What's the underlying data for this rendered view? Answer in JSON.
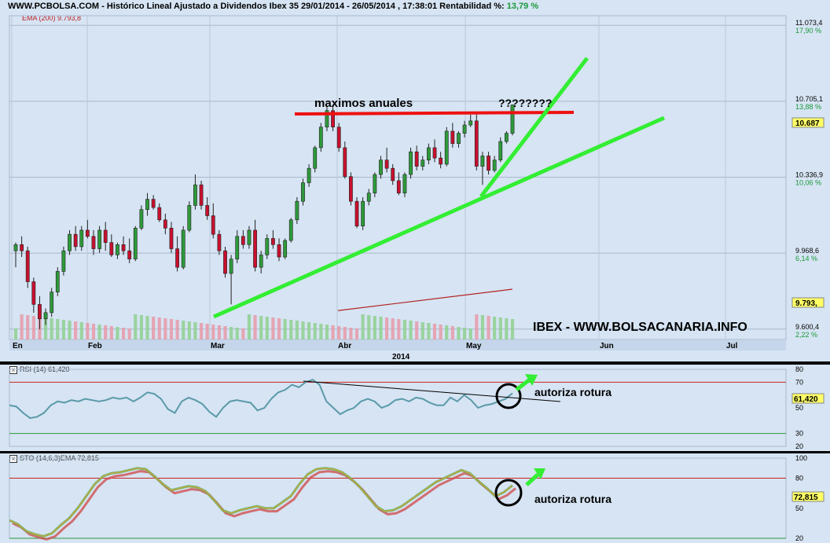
{
  "header": {
    "title_main": "WWW.PCBOLSA.COM - Histórico Lineal  Ajustado a Dividendos Ibex 35 29/01/2014 - 26/05/2014 , 17:38:01 Rentabilidad %:",
    "title_pct": "13,79 %",
    "ema_label": "EMA (200) 9.793,8"
  },
  "price_axis": [
    {
      "price": 11073.4,
      "label": "11.073,4",
      "pct": "17,90 %"
    },
    {
      "price": 10705.1,
      "label": "10.705,1",
      "pct": "13,88 %"
    },
    {
      "price": 10336.9,
      "label": "10.336,9",
      "pct": "10,06 %"
    },
    {
      "price": 9968.6,
      "label": "9.968,6",
      "pct": "6,14 %"
    },
    {
      "price": 9600.4,
      "label": "9.600,4",
      "pct": "2,22 %"
    }
  ],
  "badges": {
    "last_price": "10.687",
    "ema_value": "9.793,"
  },
  "months": [
    "En",
    "Feb",
    "Mar",
    "Abr",
    "May",
    "Jun",
    "Jul"
  ],
  "year_label": "2014",
  "annotations": {
    "maximos": "maximos anuales",
    "question": "????????",
    "watermark": "IBEX - WWW.BOLSACANARIA.INFO",
    "rsi_note": "autoriza rotura",
    "sto_note": "autoriza rotura"
  },
  "rsi": {
    "header": "RSI (14) 61,420",
    "axis": [
      "80",
      "70",
      "50",
      "30",
      "20"
    ],
    "badge": "61,420"
  },
  "sto": {
    "header": "STO (14,6,3)EMA 72,815",
    "axis": [
      "100",
      "80",
      "50",
      "20"
    ],
    "badge": "72,815"
  },
  "colors": {
    "up": "#2e9a3a",
    "down": "#c8102e",
    "trend": "#33ee33",
    "resistance": "#ee1111",
    "panel_bg": "#d6e4f3"
  },
  "chart_data": [
    {
      "type": "candlestick",
      "title": "Ibex 35",
      "ylim": [
        9550,
        11120
      ],
      "x_months": [
        "En",
        "Feb",
        "Mar",
        "Abr",
        "May",
        "Jun",
        "Jul"
      ],
      "series": [
        {
          "name": "Ibex 35",
          "ohlc": [
            [
              9980,
              10020,
              9900,
              10010
            ],
            [
              10010,
              10050,
              9950,
              9980
            ],
            [
              9980,
              10000,
              9800,
              9830
            ],
            [
              9830,
              9850,
              9680,
              9720
            ],
            [
              9720,
              9760,
              9600,
              9650
            ],
            [
              9650,
              9700,
              9620,
              9680
            ],
            [
              9680,
              9800,
              9660,
              9780
            ],
            [
              9780,
              9900,
              9760,
              9880
            ],
            [
              9880,
              10000,
              9860,
              9980
            ],
            [
              9980,
              10080,
              9960,
              10060
            ],
            [
              10060,
              10100,
              9980,
              10000
            ],
            [
              10000,
              10100,
              9980,
              10080
            ],
            [
              10080,
              10130,
              10040,
              10050
            ],
            [
              10050,
              10080,
              9960,
              9990
            ],
            [
              9990,
              10100,
              9970,
              10080
            ],
            [
              10080,
              10120,
              9980,
              10020
            ],
            [
              10020,
              10060,
              9950,
              9960
            ],
            [
              9960,
              10020,
              9940,
              10010
            ],
            [
              10010,
              10050,
              9960,
              9980
            ],
            [
              9980,
              10040,
              9920,
              9940
            ],
            [
              9940,
              10100,
              9930,
              10090
            ],
            [
              10090,
              10200,
              10080,
              10180
            ],
            [
              10180,
              10260,
              10150,
              10230
            ],
            [
              10230,
              10250,
              10180,
              10190
            ],
            [
              10190,
              10210,
              10120,
              10130
            ],
            [
              10130,
              10160,
              10060,
              10090
            ],
            [
              10090,
              10120,
              9970,
              9990
            ],
            [
              9990,
              10050,
              9880,
              9900
            ],
            [
              9900,
              10100,
              9890,
              10080
            ],
            [
              10080,
              10220,
              10070,
              10200
            ],
            [
              10200,
              10350,
              10180,
              10300
            ],
            [
              10300,
              10320,
              10180,
              10200
            ],
            [
              10200,
              10240,
              10130,
              10150
            ],
            [
              10150,
              10210,
              10040,
              10060
            ],
            [
              10060,
              10080,
              9960,
              9980
            ],
            [
              9980,
              10000,
              9850,
              9870
            ],
            [
              9870,
              9960,
              9720,
              9940
            ],
            [
              9940,
              10080,
              9920,
              10050
            ],
            [
              10050,
              10080,
              9990,
              10010
            ],
            [
              10010,
              10100,
              9990,
              10080
            ],
            [
              10080,
              10130,
              9880,
              9900
            ],
            [
              9900,
              9980,
              9870,
              9960
            ],
            [
              9960,
              10060,
              9940,
              10040
            ],
            [
              10040,
              10080,
              9990,
              10010
            ],
            [
              10010,
              10040,
              9930,
              9950
            ],
            [
              9950,
              10040,
              9940,
              10030
            ],
            [
              10030,
              10140,
              10020,
              10130
            ],
            [
              10130,
              10240,
              10110,
              10220
            ],
            [
              10220,
              10330,
              10200,
              10310
            ],
            [
              10310,
              10400,
              10290,
              10380
            ],
            [
              10380,
              10490,
              10360,
              10480
            ],
            [
              10480,
              10600,
              10460,
              10580
            ],
            [
              10580,
              10680,
              10560,
              10660
            ],
            [
              10660,
              10690,
              10560,
              10580
            ],
            [
              10580,
              10600,
              10460,
              10480
            ],
            [
              10480,
              10510,
              10330,
              10340
            ],
            [
              10340,
              10360,
              10200,
              10220
            ],
            [
              10220,
              10240,
              10090,
              10100
            ],
            [
              10100,
              10240,
              10080,
              10220
            ],
            [
              10220,
              10280,
              10200,
              10260
            ],
            [
              10260,
              10360,
              10240,
              10350
            ],
            [
              10350,
              10440,
              10330,
              10420
            ],
            [
              10420,
              10480,
              10360,
              10380
            ],
            [
              10380,
              10400,
              10300,
              10320
            ],
            [
              10320,
              10360,
              10250,
              10260
            ],
            [
              10260,
              10360,
              10240,
              10350
            ],
            [
              10350,
              10480,
              10330,
              10460
            ],
            [
              10460,
              10490,
              10370,
              10390
            ],
            [
              10390,
              10440,
              10370,
              10420
            ],
            [
              10420,
              10500,
              10400,
              10480
            ],
            [
              10480,
              10520,
              10410,
              10430
            ],
            [
              10430,
              10460,
              10380,
              10400
            ],
            [
              10400,
              10580,
              10390,
              10560
            ],
            [
              10560,
              10600,
              10480,
              10500
            ],
            [
              10500,
              10560,
              10480,
              10550
            ],
            [
              10550,
              10610,
              10530,
              10590
            ],
            [
              10590,
              10640,
              10580,
              10610
            ],
            [
              10610,
              10650,
              10370,
              10390
            ],
            [
              10390,
              10460,
              10300,
              10440
            ],
            [
              10440,
              10460,
              10350,
              10370
            ],
            [
              10370,
              10440,
              10360,
              10420
            ],
            [
              10420,
              10530,
              10410,
              10510
            ],
            [
              10510,
              10560,
              10500,
              10550
            ],
            [
              10550,
              10690,
              10540,
              10687
            ]
          ]
        },
        {
          "name": "EMA (200)",
          "values": [
            9690,
            9793.8
          ]
        }
      ]
    },
    {
      "type": "line",
      "title": "RSI (14)",
      "ylim": [
        20,
        80
      ],
      "series": [
        {
          "name": "RSI (14)",
          "values": [
            52,
            51,
            46,
            42,
            43,
            46,
            52,
            55,
            54,
            56,
            55,
            57,
            56,
            55,
            56,
            58,
            57,
            58,
            55,
            58,
            62,
            61,
            57,
            49,
            46,
            55,
            58,
            56,
            53,
            47,
            43,
            50,
            55,
            56,
            55,
            54,
            48,
            50,
            57,
            62,
            64,
            68,
            66,
            70,
            72,
            68,
            55,
            50,
            45,
            48,
            50,
            55,
            57,
            55,
            50,
            52,
            56,
            57,
            55,
            58,
            57,
            54,
            52,
            52,
            58,
            55,
            60,
            56,
            50,
            52,
            53,
            55,
            57,
            61.42
          ]
        }
      ]
    },
    {
      "type": "line",
      "title": "STO (14,6,3)EMA",
      "ylim": [
        20,
        100
      ],
      "series": [
        {
          "name": "STO (14,6,3)EMA",
          "values": [
            38,
            34,
            27,
            24,
            22,
            25,
            33,
            40,
            50,
            62,
            74,
            82,
            85,
            86,
            88,
            90,
            89,
            82,
            74,
            68,
            70,
            72,
            71,
            67,
            58,
            48,
            45,
            48,
            50,
            52,
            50,
            50,
            56,
            62,
            74,
            84,
            89,
            90,
            89,
            86,
            80,
            72,
            62,
            52,
            47,
            48,
            52,
            58,
            64,
            70,
            76,
            80,
            84,
            88,
            85,
            77,
            70,
            62,
            66,
            72.815
          ]
        }
      ]
    }
  ]
}
